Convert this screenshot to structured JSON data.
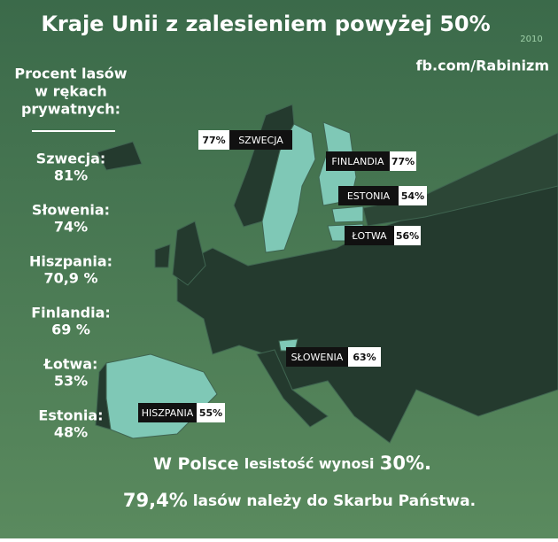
{
  "title": "Kraje Unii z zalesieniem powyżej 50%",
  "year": "2010",
  "source": "fb.com/Rabinizm",
  "sidebar": {
    "heading": [
      "Procent lasów",
      "w rękach",
      "prywatnych:"
    ],
    "items": [
      {
        "country": "Szwecja:",
        "value": "81%"
      },
      {
        "country": "Słowenia:",
        "value": "74%"
      },
      {
        "country": "Hiszpania:",
        "value": "70,9 %"
      },
      {
        "country": "Finlandia:",
        "value": "69 %"
      },
      {
        "country": "Łotwa:",
        "value": "53%"
      },
      {
        "country": "Estonia:",
        "value": "48%"
      }
    ]
  },
  "map_labels": [
    {
      "country": "SZWECJA",
      "value": "77%"
    },
    {
      "country": "FINLANDIA",
      "value": "77%"
    },
    {
      "country": "ESTONIA",
      "value": "54%"
    },
    {
      "country": "ŁOTWA",
      "value": "56%"
    },
    {
      "country": "SŁOWENIA",
      "value": "63%"
    },
    {
      "country": "HISZPANIA",
      "value": "55%"
    }
  ],
  "footer": {
    "line1": [
      "W Polsce",
      "lesistość wynosi",
      "30%."
    ],
    "line2": [
      "79,4%",
      "lasów należy do Skarbu Państwa."
    ]
  }
}
